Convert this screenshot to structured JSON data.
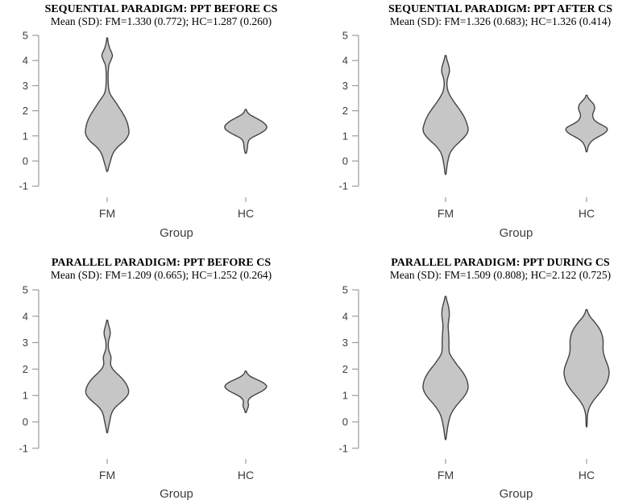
{
  "style": {
    "background": "#ffffff",
    "violin_fill": "#c6c6c6",
    "violin_stroke": "#444444",
    "axis_color": "#8a8a8a",
    "label_color": "#3c3c3c",
    "title_color": "#000000"
  },
  "chart_data": [
    {
      "type": "violin",
      "id": "sequential-ppt-before-cs",
      "title": "SEQUENTIAL PARADIGM: PPT BEFORE CS",
      "subtitle": "Mean (SD): FM=1.330 (0.772); HC=1.287 (0.260)",
      "xlabel": "Group",
      "categories": [
        "FM",
        "HC"
      ],
      "ylim": [
        -1,
        5
      ],
      "yticks": [
        5,
        4,
        3,
        2,
        1,
        0,
        -1
      ],
      "stats": {
        "FM": {
          "mean": 1.33,
          "sd": 0.772
        },
        "HC": {
          "mean": 1.287,
          "sd": 0.26
        }
      },
      "violins": {
        "FM": [
          [
            4.9,
            0.5
          ],
          [
            4.72,
            1.2
          ],
          [
            4.5,
            3
          ],
          [
            4.32,
            5.5
          ],
          [
            4.18,
            6.5
          ],
          [
            4.0,
            4.5
          ],
          [
            3.82,
            2.2
          ],
          [
            3.55,
            1.3
          ],
          [
            3.2,
            1.2
          ],
          [
            2.9,
            1.8
          ],
          [
            2.68,
            3.5
          ],
          [
            2.5,
            7
          ],
          [
            2.32,
            11
          ],
          [
            2.12,
            15
          ],
          [
            1.92,
            19
          ],
          [
            1.72,
            22.5
          ],
          [
            1.52,
            25
          ],
          [
            1.32,
            26.5
          ],
          [
            1.12,
            27
          ],
          [
            0.95,
            25
          ],
          [
            0.78,
            21
          ],
          [
            0.6,
            14.5
          ],
          [
            0.42,
            9.5
          ],
          [
            0.25,
            6.5
          ],
          [
            0.08,
            4.8
          ],
          [
            -0.1,
            3.2
          ],
          [
            -0.25,
            1.8
          ],
          [
            -0.4,
            0.6
          ]
        ],
        "HC": [
          [
            2.05,
            0.7
          ],
          [
            1.95,
            2
          ],
          [
            1.85,
            5
          ],
          [
            1.74,
            11
          ],
          [
            1.62,
            18
          ],
          [
            1.5,
            23
          ],
          [
            1.38,
            26
          ],
          [
            1.26,
            25
          ],
          [
            1.14,
            20
          ],
          [
            1.02,
            13
          ],
          [
            0.92,
            7
          ],
          [
            0.82,
            3.8
          ],
          [
            0.7,
            2.6
          ],
          [
            0.58,
            2.2
          ],
          [
            0.45,
            1.6
          ],
          [
            0.32,
            0.7
          ]
        ]
      }
    },
    {
      "type": "violin",
      "id": "sequential-ppt-after-cs",
      "title": "SEQUENTIAL PARADIGM: PPT AFTER CS",
      "subtitle": "Mean (SD): FM=1.326 (0.683); HC=1.326 (0.414)",
      "xlabel": "Group",
      "categories": [
        "FM",
        "HC"
      ],
      "ylim": [
        -1,
        5
      ],
      "yticks": [
        5,
        4,
        3,
        2,
        1,
        0,
        -1
      ],
      "stats": {
        "FM": {
          "mean": 1.326,
          "sd": 0.683
        },
        "HC": {
          "mean": 1.326,
          "sd": 0.414
        }
      },
      "violins": {
        "FM": [
          [
            4.2,
            0.6
          ],
          [
            4.05,
            1.6
          ],
          [
            3.88,
            3.2
          ],
          [
            3.7,
            4.6
          ],
          [
            3.52,
            4.6
          ],
          [
            3.35,
            3
          ],
          [
            3.15,
            1.8
          ],
          [
            2.95,
            2
          ],
          [
            2.75,
            3.4
          ],
          [
            2.58,
            6
          ],
          [
            2.4,
            9.5
          ],
          [
            2.22,
            13.5
          ],
          [
            2.02,
            18
          ],
          [
            1.82,
            22
          ],
          [
            1.62,
            25
          ],
          [
            1.45,
            26.8
          ],
          [
            1.28,
            28
          ],
          [
            1.12,
            27
          ],
          [
            0.96,
            23.5
          ],
          [
            0.78,
            18
          ],
          [
            0.6,
            12
          ],
          [
            0.42,
            7.5
          ],
          [
            0.25,
            4.8
          ],
          [
            0.05,
            3.2
          ],
          [
            -0.2,
            1.8
          ],
          [
            -0.5,
            0.6
          ]
        ],
        "HC": [
          [
            2.62,
            0.7
          ],
          [
            2.5,
            2.2
          ],
          [
            2.38,
            5.5
          ],
          [
            2.26,
            8.8
          ],
          [
            2.14,
            10
          ],
          [
            2.02,
            9.5
          ],
          [
            1.9,
            8
          ],
          [
            1.78,
            7.6
          ],
          [
            1.64,
            9.5
          ],
          [
            1.52,
            14
          ],
          [
            1.42,
            20
          ],
          [
            1.32,
            25
          ],
          [
            1.22,
            25.5
          ],
          [
            1.1,
            22
          ],
          [
            0.98,
            15.5
          ],
          [
            0.86,
            9
          ],
          [
            0.74,
            4.8
          ],
          [
            0.62,
            2.6
          ],
          [
            0.5,
            1.4
          ],
          [
            0.38,
            0.6
          ]
        ]
      }
    },
    {
      "type": "violin",
      "id": "parallel-ppt-before-cs",
      "title": "PARALLEL PARADIGM: PPT BEFORE CS",
      "subtitle": "Mean (SD): FM=1.209 (0.665); HC=1.252 (0.264)",
      "xlabel": "Group",
      "categories": [
        "FM",
        "HC"
      ],
      "ylim": [
        -1,
        5
      ],
      "yticks": [
        5,
        4,
        3,
        2,
        1,
        0,
        -1
      ],
      "stats": {
        "FM": {
          "mean": 1.209,
          "sd": 0.665
        },
        "HC": {
          "mean": 1.252,
          "sd": 0.264
        }
      },
      "violins": {
        "FM": [
          [
            3.85,
            0.6
          ],
          [
            3.72,
            1.4
          ],
          [
            3.56,
            2.8
          ],
          [
            3.4,
            3.8
          ],
          [
            3.25,
            3.4
          ],
          [
            3.1,
            2
          ],
          [
            2.92,
            1.4
          ],
          [
            2.74,
            1.8
          ],
          [
            2.58,
            3.6
          ],
          [
            2.44,
            4.8
          ],
          [
            2.3,
            4.4
          ],
          [
            2.16,
            4.4
          ],
          [
            2.02,
            6.5
          ],
          [
            1.88,
            10.5
          ],
          [
            1.72,
            16
          ],
          [
            1.55,
            21
          ],
          [
            1.38,
            24.5
          ],
          [
            1.2,
            26.5
          ],
          [
            1.05,
            26
          ],
          [
            0.9,
            22.5
          ],
          [
            0.74,
            17
          ],
          [
            0.58,
            11
          ],
          [
            0.42,
            7
          ],
          [
            0.26,
            4.8
          ],
          [
            0.08,
            3.6
          ],
          [
            -0.12,
            2.2
          ],
          [
            -0.28,
            1.2
          ],
          [
            -0.4,
            0.5
          ]
        ],
        "HC": [
          [
            1.92,
            0.7
          ],
          [
            1.82,
            2.2
          ],
          [
            1.72,
            6
          ],
          [
            1.62,
            12.5
          ],
          [
            1.52,
            19.5
          ],
          [
            1.4,
            25
          ],
          [
            1.3,
            25.5
          ],
          [
            1.18,
            21
          ],
          [
            1.06,
            13.5
          ],
          [
            0.96,
            7.5
          ],
          [
            0.86,
            4
          ],
          [
            0.76,
            2.8
          ],
          [
            0.66,
            3.4
          ],
          [
            0.56,
            3
          ],
          [
            0.46,
            1.6
          ],
          [
            0.36,
            0.6
          ]
        ]
      }
    },
    {
      "type": "violin",
      "id": "parallel-ppt-during-cs",
      "title": "PARALLEL PARADIGM: PPT DURING CS",
      "subtitle": "Mean (SD): FM=1.509 (0.808); HC=2.122 (0.725)",
      "xlabel": "Group",
      "categories": [
        "FM",
        "HC"
      ],
      "ylim": [
        -1,
        5
      ],
      "yticks": [
        5,
        4,
        3,
        2,
        1,
        0,
        -1
      ],
      "stats": {
        "FM": {
          "mean": 1.509,
          "sd": 0.808
        },
        "HC": {
          "mean": 2.122,
          "sd": 0.725
        }
      },
      "violins": {
        "FM": [
          [
            4.75,
            0.6
          ],
          [
            4.6,
            1.6
          ],
          [
            4.42,
            3.2
          ],
          [
            4.22,
            4.4
          ],
          [
            4.02,
            4.6
          ],
          [
            3.82,
            3.8
          ],
          [
            3.62,
            3.2
          ],
          [
            3.42,
            3.6
          ],
          [
            3.22,
            4
          ],
          [
            3.02,
            4.2
          ],
          [
            2.82,
            4.2
          ],
          [
            2.62,
            4.8
          ],
          [
            2.48,
            7
          ],
          [
            2.32,
            10.5
          ],
          [
            2.15,
            14.5
          ],
          [
            1.98,
            19
          ],
          [
            1.8,
            23
          ],
          [
            1.62,
            26
          ],
          [
            1.46,
            27.5
          ],
          [
            1.3,
            28
          ],
          [
            1.14,
            26.5
          ],
          [
            0.96,
            23
          ],
          [
            0.78,
            18
          ],
          [
            0.6,
            13
          ],
          [
            0.42,
            9
          ],
          [
            0.24,
            6
          ],
          [
            0.04,
            4.2
          ],
          [
            -0.2,
            2.6
          ],
          [
            -0.45,
            1.4
          ],
          [
            -0.65,
            0.5
          ]
        ],
        "HC": [
          [
            4.25,
            0.7
          ],
          [
            4.12,
            2
          ],
          [
            3.96,
            5
          ],
          [
            3.8,
            9.5
          ],
          [
            3.62,
            14
          ],
          [
            3.44,
            17.5
          ],
          [
            3.26,
            19.5
          ],
          [
            3.08,
            20.5
          ],
          [
            2.9,
            20.5
          ],
          [
            2.72,
            20.5
          ],
          [
            2.54,
            21.5
          ],
          [
            2.36,
            23.5
          ],
          [
            2.18,
            25.8
          ],
          [
            2.0,
            27.5
          ],
          [
            1.84,
            28
          ],
          [
            1.66,
            27
          ],
          [
            1.48,
            25
          ],
          [
            1.3,
            21.5
          ],
          [
            1.12,
            17
          ],
          [
            0.94,
            12
          ],
          [
            0.76,
            7.5
          ],
          [
            0.58,
            4
          ],
          [
            0.4,
            2
          ],
          [
            0.22,
            1
          ],
          [
            -0.15,
            0.5
          ]
        ]
      }
    }
  ]
}
